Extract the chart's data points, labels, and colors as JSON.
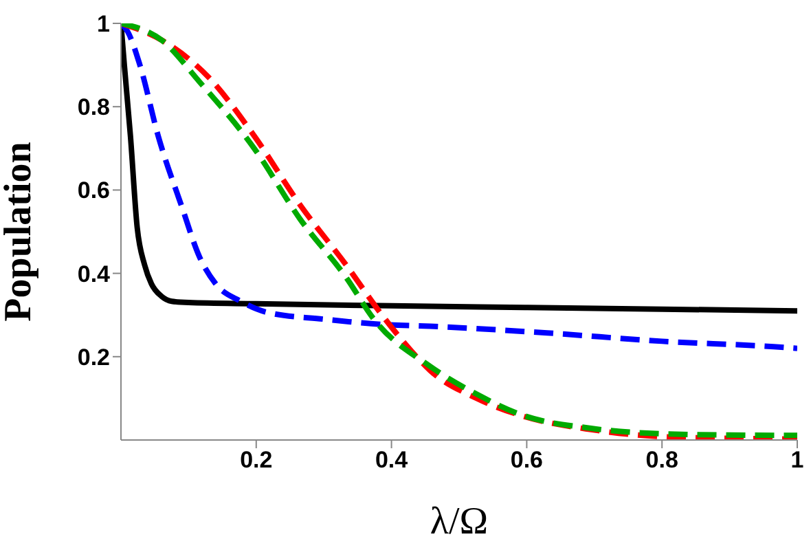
{
  "chart_data": {
    "type": "line",
    "xlabel": "λ/Ω",
    "ylabel": "Population",
    "xlim": [
      0,
      1
    ],
    "ylim": [
      0,
      1
    ],
    "xticks": [
      0.2,
      0.4,
      0.6,
      0.8,
      1
    ],
    "yticks": [
      0.2,
      0.4,
      0.6,
      0.8,
      1
    ],
    "grid": false,
    "legend": false,
    "marker": "none",
    "series": [
      {
        "color": "#000000",
        "line_style": "solid",
        "x": [
          0,
          0.005,
          0.014,
          0.024,
          0.035,
          0.045,
          0.06,
          0.075,
          0.1,
          0.2,
          0.4,
          0.6,
          0.8,
          1
        ],
        "values": [
          1,
          0.9,
          0.73,
          0.51,
          0.42,
          0.375,
          0.345,
          0.333,
          0.33,
          0.327,
          0.322,
          0.318,
          0.314,
          0.31
        ]
      },
      {
        "color": "#0000ff",
        "line_style": "dashed",
        "x": [
          0,
          0.01,
          0.028,
          0.055,
          0.09,
          0.116,
          0.14,
          0.177,
          0.217,
          0.3,
          0.39,
          0.457,
          0.63,
          0.8,
          0.965,
          1
        ],
        "values": [
          1,
          0.98,
          0.9,
          0.73,
          0.56,
          0.44,
          0.375,
          0.333,
          0.306,
          0.29,
          0.277,
          0.273,
          0.257,
          0.237,
          0.224,
          0.22
        ]
      },
      {
        "color": "#ff0000",
        "line_style": "dashed",
        "x": [
          0,
          0.06,
          0.13,
          0.197,
          0.265,
          0.333,
          0.386,
          0.437,
          0.457,
          0.526,
          0.593,
          0.695,
          0.8,
          0.9,
          1
        ],
        "values": [
          1,
          0.96,
          0.87,
          0.73,
          0.564,
          0.42,
          0.3,
          0.2,
          0.167,
          0.1,
          0.058,
          0.025,
          0.008,
          0.004,
          0.002
        ]
      },
      {
        "color": "#00aa00",
        "line_style": "dashed",
        "x": [
          0,
          0.06,
          0.116,
          0.197,
          0.265,
          0.333,
          0.374,
          0.457,
          0.526,
          0.593,
          0.695,
          0.8,
          0.9,
          1
        ],
        "values": [
          1,
          0.96,
          0.86,
          0.7,
          0.53,
          0.39,
          0.29,
          0.177,
          0.11,
          0.06,
          0.028,
          0.015,
          0.012,
          0.011
        ]
      }
    ]
  }
}
